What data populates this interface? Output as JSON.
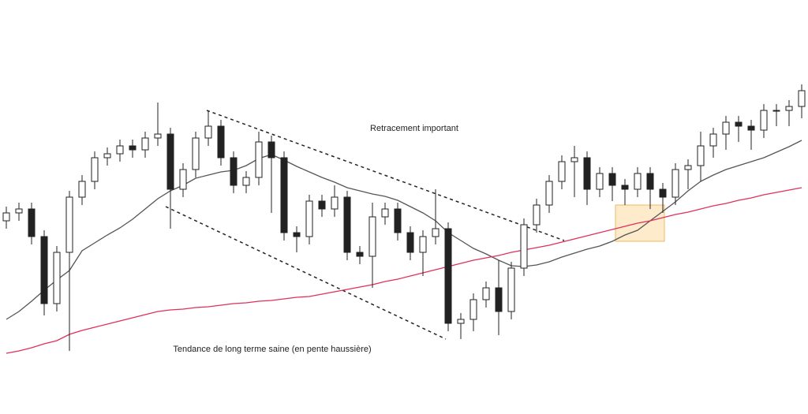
{
  "chart_data": {
    "type": "candlestick",
    "annotations": [
      "Retracement important",
      "Tendance de long terme saine (en pente haussière)"
    ],
    "ylim": [
      0,
      525
    ],
    "up_color": "#ffffff",
    "down_color": "#222222",
    "open": [
      245,
      255,
      260,
      225,
      140,
      205,
      275,
      295,
      325,
      330,
      340,
      335,
      350,
      355,
      285,
      310,
      350,
      365,
      325,
      290,
      300,
      345,
      325,
      230,
      225,
      270,
      260,
      275,
      205,
      200,
      250,
      260,
      230,
      205,
      225,
      235,
      115,
      120,
      145,
      160,
      130,
      185,
      240,
      265,
      295,
      320,
      325,
      285,
      305,
      290,
      285,
      305,
      285,
      275,
      310,
      315,
      340,
      355,
      370,
      365,
      360,
      385,
      385,
      390
    ],
    "high": [
      263,
      268,
      268,
      233,
      213,
      283,
      303,
      333,
      338,
      348,
      348,
      358,
      395,
      363,
      318,
      358,
      385,
      373,
      333,
      308,
      358,
      353,
      333,
      238,
      278,
      278,
      290,
      283,
      213,
      268,
      268,
      268,
      238,
      233,
      285,
      243,
      128,
      153,
      168,
      195,
      193,
      248,
      273,
      303,
      328,
      340,
      333,
      313,
      313,
      298,
      313,
      313,
      293,
      318,
      323,
      358,
      363,
      378,
      378,
      373,
      393,
      393,
      398,
      418
    ],
    "low": [
      235,
      245,
      215,
      125,
      130,
      80,
      265,
      285,
      315,
      320,
      325,
      325,
      340,
      235,
      275,
      300,
      340,
      315,
      280,
      280,
      290,
      255,
      220,
      205,
      215,
      250,
      250,
      195,
      190,
      160,
      240,
      220,
      195,
      175,
      215,
      105,
      95,
      105,
      135,
      100,
      120,
      175,
      230,
      255,
      285,
      275,
      265,
      275,
      270,
      265,
      275,
      260,
      255,
      265,
      285,
      295,
      325,
      335,
      345,
      335,
      350,
      365,
      365,
      375
    ],
    "close": [
      255,
      260,
      225,
      140,
      205,
      275,
      295,
      325,
      330,
      340,
      335,
      350,
      355,
      285,
      310,
      350,
      365,
      325,
      290,
      300,
      345,
      325,
      230,
      225,
      270,
      260,
      275,
      205,
      200,
      250,
      260,
      230,
      205,
      225,
      235,
      115,
      120,
      145,
      160,
      130,
      185,
      240,
      265,
      295,
      320,
      325,
      285,
      305,
      290,
      285,
      305,
      285,
      275,
      310,
      315,
      340,
      355,
      370,
      365,
      360,
      385,
      385,
      390,
      410
    ],
    "series": [
      {
        "color": "#555555",
        "values": [
          120,
          130,
          143,
          157,
          170,
          182,
          207,
          217,
          227,
          236,
          247,
          260,
          273,
          283,
          290,
          299,
          303,
          307,
          309,
          315,
          324,
          329,
          322,
          314,
          307,
          300,
          294,
          287,
          283,
          279,
          276,
          271,
          263,
          255,
          245,
          230,
          220,
          210,
          203,
          195,
          188,
          187,
          189,
          193,
          199,
          204,
          209,
          213,
          219,
          227,
          233,
          245,
          257,
          269,
          283,
          295,
          303,
          310,
          315,
          320,
          325,
          332,
          339,
          347
        ]
      },
      {
        "color": "#e0305a",
        "values": [
          77,
          80,
          84,
          89,
          93,
          101,
          106,
          110,
          114,
          118,
          122,
          126,
          130,
          132,
          133,
          135,
          136,
          138,
          140,
          141,
          143,
          144,
          146,
          148,
          149,
          152,
          155,
          158,
          161,
          164,
          168,
          171,
          175,
          179,
          183,
          187,
          191,
          195,
          198,
          201,
          205,
          208,
          211,
          214,
          218,
          222,
          226,
          230,
          234,
          238,
          242,
          245,
          249,
          253,
          256,
          260,
          264,
          267,
          271,
          274,
          278,
          281,
          284,
          287
        ]
      }
    ]
  }
}
